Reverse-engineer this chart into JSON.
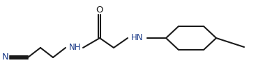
{
  "bg_color": "#ffffff",
  "line_color": "#1a1a1a",
  "text_color": "#1a1a1a",
  "label_N": "N",
  "label_NH1": "NH",
  "label_NH2": "HN",
  "label_O": "O",
  "figsize": [
    3.9,
    1.2
  ],
  "dpi": 100,
  "lw": 1.5,
  "fs": 8.5,
  "N_color": "#1a3a88",
  "NH_color": "#1a3a88"
}
